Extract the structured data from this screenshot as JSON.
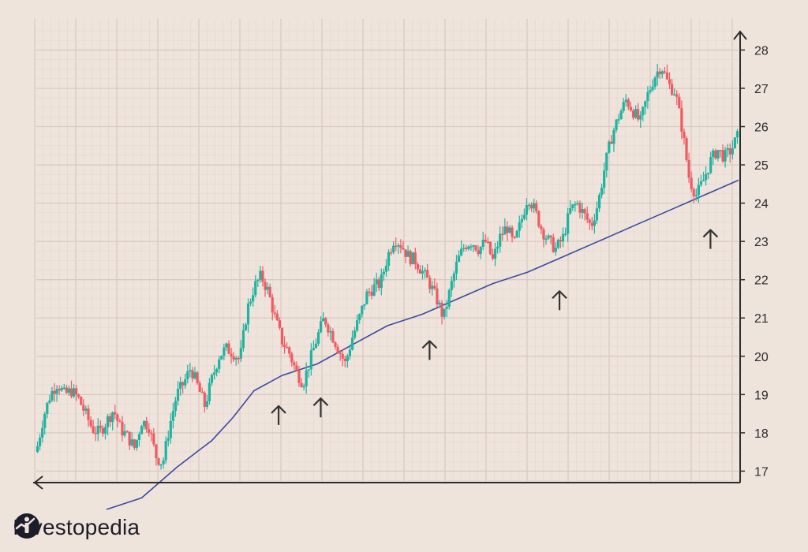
{
  "colors": {
    "background": "#efe4dc",
    "grid_major": "#d9c9c0",
    "grid_minor": "#e6d9d1",
    "up": "#1fb3a0",
    "down": "#ee5a62",
    "moving_average": "#3a4aa0",
    "axis": "#2b2b2b",
    "arrows": "#333333"
  },
  "brand": {
    "name": "Investopedia",
    "logo_icon": "investopedia-logo-icon"
  },
  "chart_data": {
    "type": "candlestick",
    "title": "",
    "xlabel": "",
    "ylabel": "",
    "ylim": [
      16.7,
      28.4
    ],
    "y_ticks": [
      17,
      18,
      19,
      20,
      21,
      22,
      23,
      24,
      25,
      26,
      27,
      28
    ],
    "y_axis_side": "right",
    "grid": true,
    "x_range": [
      0,
      100
    ],
    "price_path": [
      [
        0,
        17.5
      ],
      [
        1,
        18.4
      ],
      [
        2,
        19.0
      ],
      [
        3,
        19.3
      ],
      [
        4,
        19.0
      ],
      [
        5,
        19.1
      ],
      [
        6,
        18.9
      ],
      [
        7,
        18.5
      ],
      [
        8,
        18.1
      ],
      [
        9,
        18.0
      ],
      [
        10,
        18.3
      ],
      [
        11,
        18.6
      ],
      [
        12,
        18.1
      ],
      [
        13,
        17.9
      ],
      [
        14,
        17.6
      ],
      [
        15,
        18.3
      ],
      [
        16,
        18.2
      ],
      [
        17,
        17.4
      ],
      [
        18,
        17.2
      ],
      [
        19,
        18.2
      ],
      [
        20,
        19.0
      ],
      [
        21,
        19.3
      ],
      [
        22,
        19.7
      ],
      [
        23,
        19.2
      ],
      [
        24,
        18.7
      ],
      [
        25,
        19.4
      ],
      [
        26,
        20.0
      ],
      [
        27,
        20.2
      ],
      [
        28,
        20.1
      ],
      [
        29,
        19.9
      ],
      [
        30,
        21.2
      ],
      [
        31,
        21.8
      ],
      [
        32,
        22.1
      ],
      [
        33,
        21.7
      ],
      [
        34,
        21.0
      ],
      [
        35,
        20.4
      ],
      [
        36,
        20.1
      ],
      [
        37,
        19.6
      ],
      [
        38,
        19.3
      ],
      [
        39,
        19.9
      ],
      [
        40,
        20.5
      ],
      [
        41,
        21.0
      ],
      [
        42,
        20.6
      ],
      [
        43,
        20.2
      ],
      [
        44,
        19.8
      ],
      [
        45,
        20.5
      ],
      [
        46,
        21.0
      ],
      [
        47,
        21.6
      ],
      [
        48,
        21.8
      ],
      [
        49,
        21.9
      ],
      [
        50,
        22.6
      ],
      [
        51,
        23.1
      ],
      [
        52,
        22.9
      ],
      [
        53,
        22.6
      ],
      [
        54,
        22.5
      ],
      [
        55,
        22.2
      ],
      [
        56,
        21.9
      ],
      [
        57,
        21.5
      ],
      [
        58,
        21.0
      ],
      [
        59,
        21.8
      ],
      [
        60,
        22.5
      ],
      [
        61,
        22.9
      ],
      [
        62,
        23.0
      ],
      [
        63,
        22.8
      ],
      [
        64,
        23.0
      ],
      [
        65,
        22.5
      ],
      [
        66,
        23.1
      ],
      [
        67,
        23.4
      ],
      [
        68,
        22.9
      ],
      [
        69,
        23.5
      ],
      [
        70,
        24.2
      ],
      [
        71,
        23.8
      ],
      [
        72,
        23.3
      ],
      [
        73,
        23.0
      ],
      [
        74,
        22.8
      ],
      [
        75,
        23.1
      ],
      [
        76,
        23.8
      ],
      [
        77,
        24.0
      ],
      [
        78,
        23.7
      ],
      [
        79,
        23.4
      ],
      [
        80,
        24.0
      ],
      [
        81,
        25.0
      ],
      [
        82,
        25.8
      ],
      [
        83,
        26.3
      ],
      [
        84,
        26.7
      ],
      [
        85,
        26.4
      ],
      [
        86,
        26.1
      ],
      [
        87,
        26.8
      ],
      [
        88,
        27.3
      ],
      [
        89,
        27.6
      ],
      [
        90,
        27.1
      ],
      [
        91,
        26.9
      ],
      [
        92,
        25.9
      ],
      [
        93,
        24.6
      ],
      [
        94,
        24.2
      ],
      [
        95,
        24.6
      ],
      [
        96,
        25.1
      ],
      [
        97,
        25.4
      ],
      [
        98,
        25.2
      ],
      [
        99,
        25.4
      ],
      [
        100,
        25.8
      ]
    ],
    "moving_average": [
      [
        10,
        16.0
      ],
      [
        15,
        16.3
      ],
      [
        20,
        17.1
      ],
      [
        25,
        17.8
      ],
      [
        28,
        18.4
      ],
      [
        31,
        19.1
      ],
      [
        35,
        19.5
      ],
      [
        40,
        19.8
      ],
      [
        45,
        20.3
      ],
      [
        50,
        20.8
      ],
      [
        55,
        21.1
      ],
      [
        60,
        21.5
      ],
      [
        65,
        21.9
      ],
      [
        70,
        22.2
      ],
      [
        75,
        22.6
      ],
      [
        80,
        23.0
      ],
      [
        85,
        23.4
      ],
      [
        90,
        23.8
      ],
      [
        95,
        24.2
      ],
      [
        100,
        24.6
      ]
    ],
    "annotations": [
      {
        "type": "arrow-up",
        "x": 34.5,
        "y": 18.7
      },
      {
        "type": "arrow-up",
        "x": 40.5,
        "y": 18.9
      },
      {
        "type": "arrow-up",
        "x": 56.0,
        "y": 20.4
      },
      {
        "type": "arrow-up",
        "x": 74.5,
        "y": 21.7
      },
      {
        "type": "arrow-up",
        "x": 96.0,
        "y": 23.3
      }
    ]
  }
}
